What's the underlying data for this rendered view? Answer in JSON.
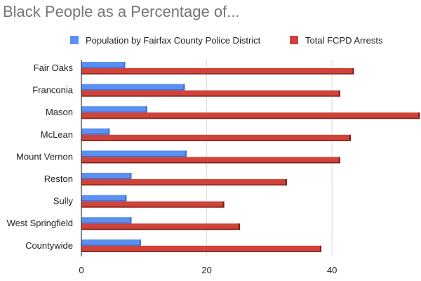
{
  "title": "Black People as a Percentage of...",
  "colors": {
    "population": "#5b8ff0",
    "population_dark": "#3a6fd6",
    "arrests": "#d0433a",
    "arrests_dark": "#7a1e18",
    "grid": "#d9d9d9",
    "axis": "#333333"
  },
  "chart_data": {
    "type": "bar",
    "orientation": "horizontal",
    "title": "Black People as a Percentage of...",
    "categories": [
      "Fair Oaks",
      "Franconia",
      "Mason",
      "McLean",
      "Mount Vernon",
      "Reston",
      "Sully",
      "West Springfield",
      "Countywide"
    ],
    "series": [
      {
        "name": "Population by Fairfax County Police District",
        "values": [
          7,
          16.5,
          10.5,
          4.5,
          16.8,
          8,
          7.2,
          8,
          9.5
        ]
      },
      {
        "name": "Total FCPD Arrests",
        "values": [
          43.5,
          41.3,
          54,
          43,
          41.3,
          32.8,
          22.8,
          25.3,
          38.3
        ]
      }
    ],
    "xlim": [
      0,
      54
    ],
    "xticks": [
      0,
      20,
      40
    ],
    "grid": true,
    "legend_position": "top",
    "xlabel": "",
    "ylabel": ""
  }
}
